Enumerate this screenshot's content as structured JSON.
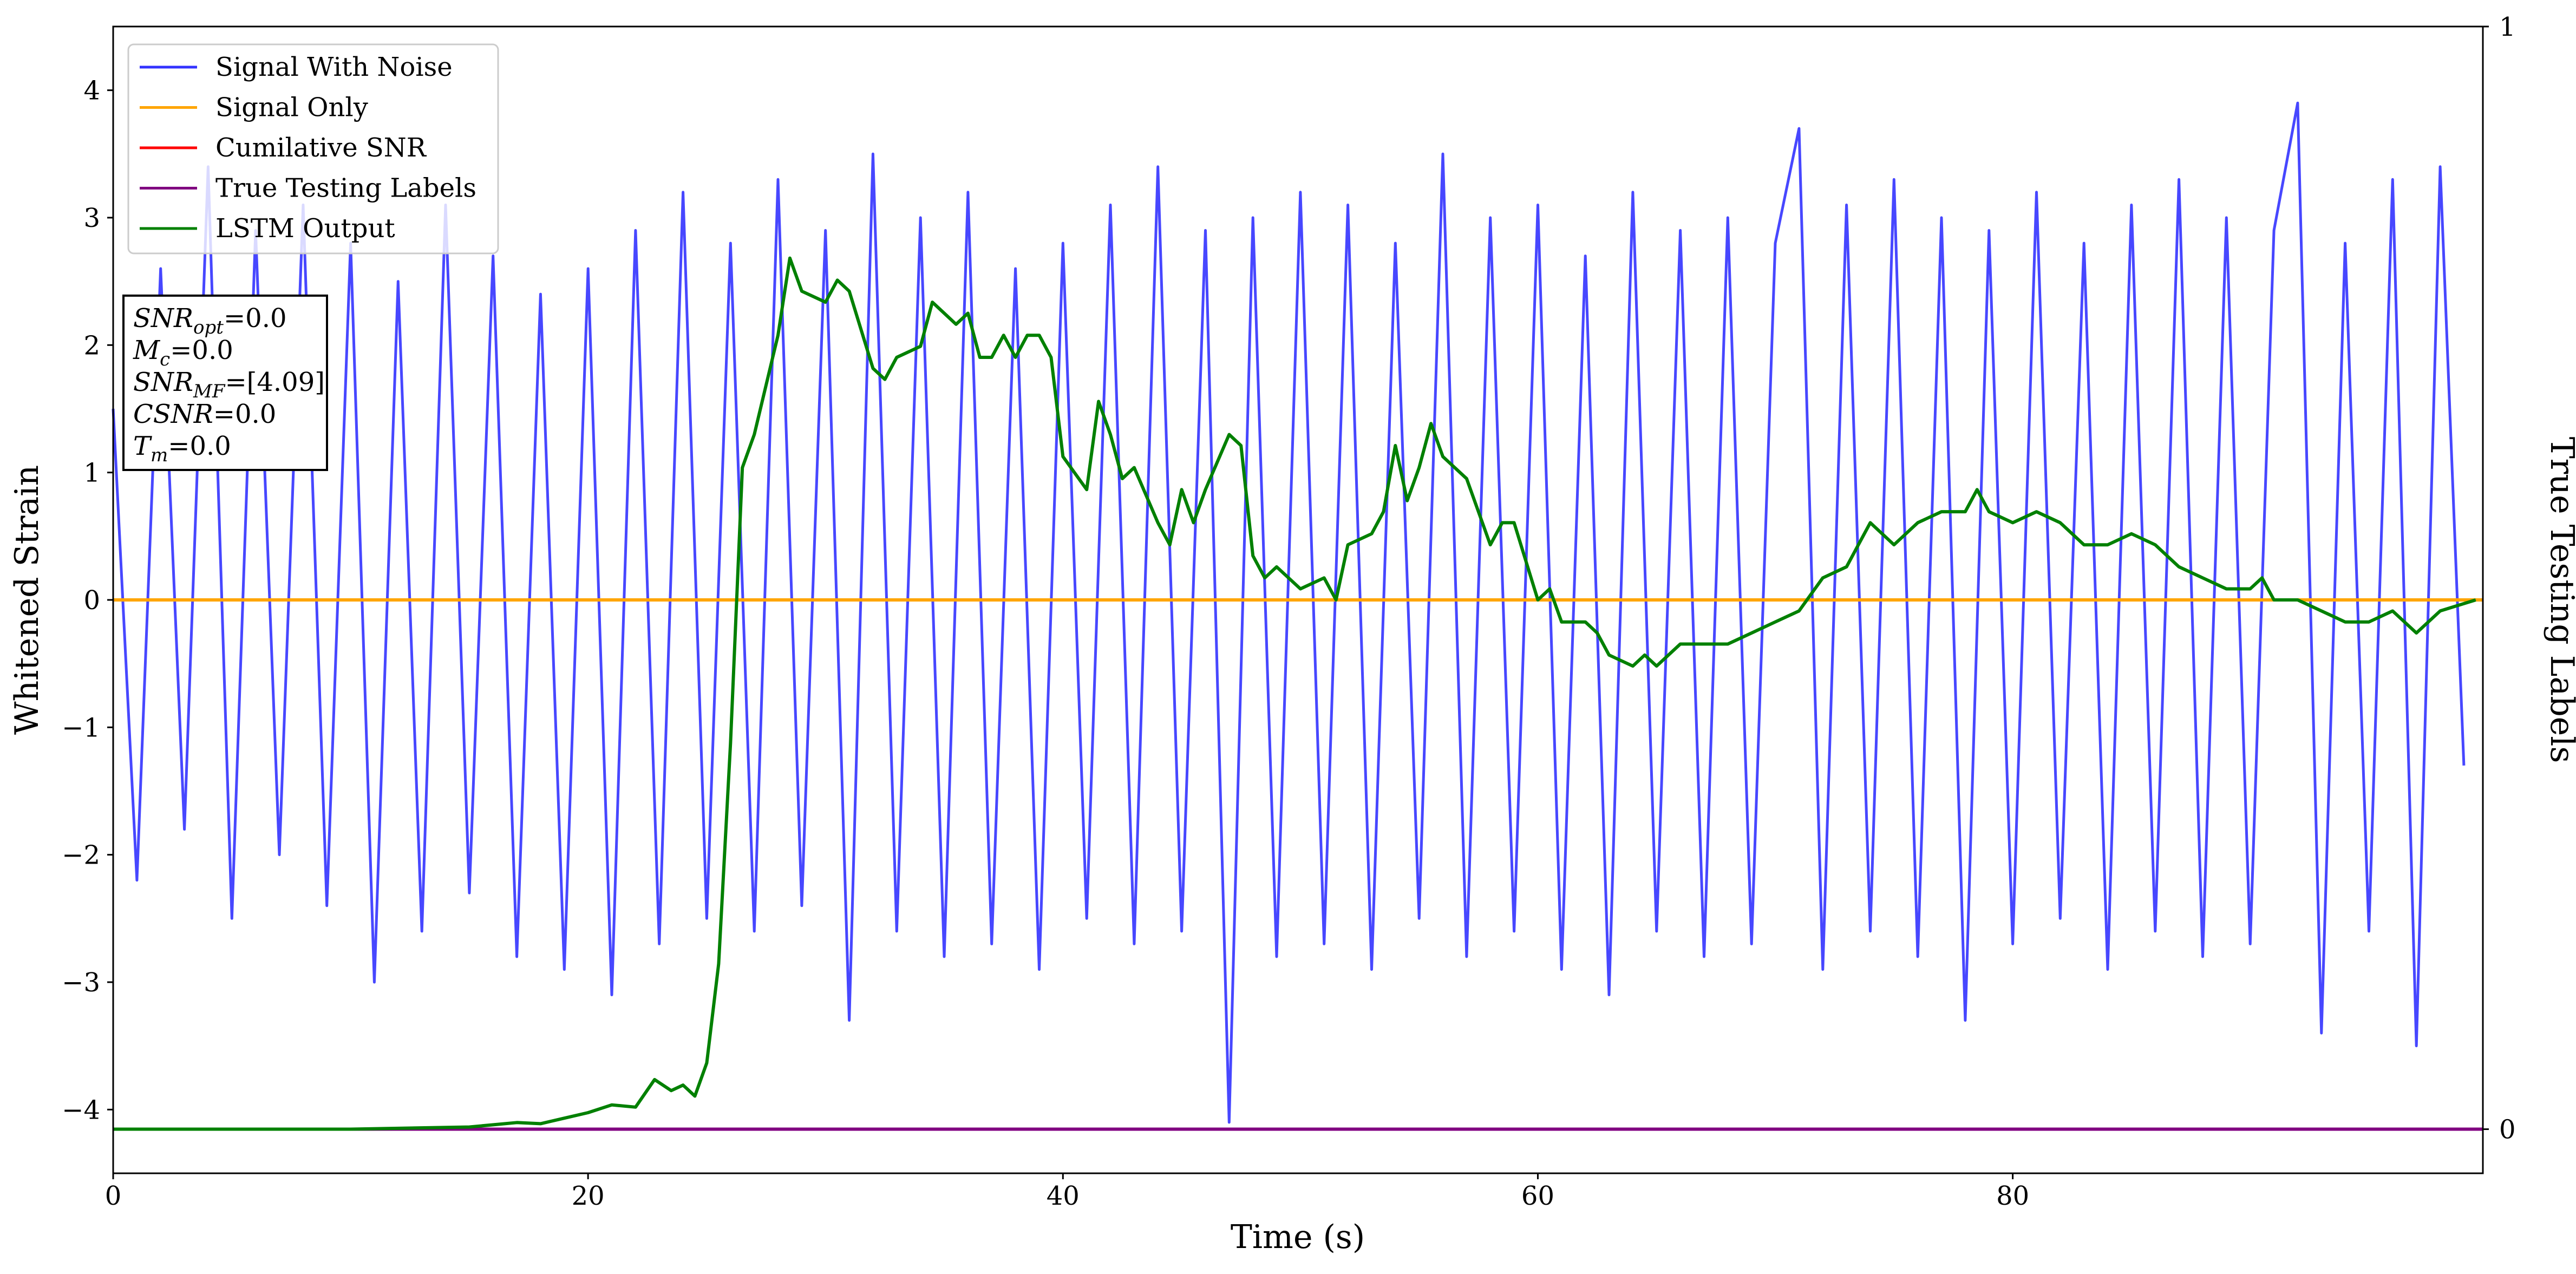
{
  "chart_data": {
    "type": "line",
    "xlabel": "Time (s)",
    "ylabel": "Whitened Strain",
    "y2label": "True Testing Labels",
    "xlim": [
      0,
      99.8
    ],
    "xticks": [
      0,
      20,
      40,
      60,
      80
    ],
    "ylim": [
      -4.5,
      4.5
    ],
    "yticks": [
      -4,
      -3,
      -2,
      -1,
      0,
      1,
      2,
      3,
      4
    ],
    "y2lim": [
      -0.04,
      1
    ],
    "y2ticks": [
      0,
      1
    ],
    "legend": "upper left",
    "series": [
      {
        "name": "Signal With Noise",
        "color": "#3333ff",
        "x": [
          0,
          1,
          2,
          3,
          4,
          5,
          6,
          7,
          8,
          9,
          10,
          11,
          12,
          13,
          14,
          15,
          16,
          17,
          18,
          19,
          20,
          21,
          22,
          23,
          24,
          25,
          26,
          27,
          28,
          29,
          30,
          31,
          32,
          33,
          34,
          35,
          36,
          37,
          38,
          39,
          40,
          41,
          42,
          43,
          44,
          45,
          46,
          47,
          48,
          49,
          50,
          51,
          52,
          53,
          54,
          55,
          56,
          57,
          58,
          59,
          60,
          61,
          62,
          63,
          64,
          65,
          66,
          67,
          68,
          69,
          70,
          71,
          72,
          73,
          74,
          75,
          76,
          77,
          78,
          79,
          80,
          81,
          82,
          83,
          84,
          85,
          86,
          87,
          88,
          89,
          90,
          91,
          92,
          93,
          94,
          95,
          96,
          97,
          98,
          99
        ],
        "values": [
          1.5,
          -2.2,
          2.6,
          -1.8,
          3.4,
          -2.5,
          2.9,
          -2.0,
          3.1,
          -2.4,
          2.8,
          -3.0,
          2.5,
          -2.6,
          3.1,
          -2.3,
          2.7,
          -2.8,
          2.4,
          -2.9,
          2.6,
          -3.1,
          2.9,
          -2.7,
          3.2,
          -2.5,
          2.8,
          -2.6,
          3.3,
          -2.4,
          2.9,
          -3.3,
          3.5,
          -2.6,
          3.0,
          -2.8,
          3.2,
          -2.7,
          2.6,
          -2.9,
          2.8,
          -2.5,
          3.1,
          -2.7,
          3.4,
          -2.6,
          2.9,
          -4.1,
          3.0,
          -2.8,
          3.2,
          -2.7,
          3.1,
          -2.9,
          2.8,
          -2.5,
          3.5,
          -2.8,
          3.0,
          -2.6,
          3.1,
          -2.9,
          2.7,
          -3.1,
          3.2,
          -2.6,
          2.9,
          -2.8,
          3.0,
          -2.7,
          2.8,
          3.7,
          -2.9,
          3.1,
          -2.6,
          3.3,
          -2.8,
          3.0,
          -3.3,
          2.9,
          -2.7,
          3.2,
          -2.5,
          2.8,
          -2.9,
          3.1,
          -2.6,
          3.3,
          -2.8,
          3.0,
          -2.7,
          2.9,
          3.9,
          -3.4,
          2.8,
          -2.6,
          3.3,
          -3.5,
          3.4,
          -1.3
        ]
      },
      {
        "name": "Signal Only",
        "color": "#ffa500",
        "x": [
          0,
          99.8
        ],
        "values": [
          0,
          0
        ]
      },
      {
        "name": "Cumilative SNR",
        "color": "#ff0000",
        "x": [
          0,
          99.8
        ],
        "values": [
          0,
          0
        ]
      },
      {
        "name": "True Testing Labels",
        "color": "#800080",
        "axis": "y2",
        "x": [
          0,
          99.8
        ],
        "values": [
          0,
          0
        ]
      },
      {
        "name": "LSTM Output",
        "color": "#008000",
        "axis": "y2",
        "x": [
          0,
          10,
          15,
          17,
          18,
          19,
          20,
          21,
          22,
          22.8,
          23.5,
          24,
          24.5,
          25,
          25.5,
          26,
          26.5,
          27,
          28,
          28.5,
          29,
          30,
          30.5,
          31,
          32,
          32.5,
          33,
          34,
          34.5,
          35,
          35.5,
          36,
          36.5,
          37,
          37.5,
          38,
          38.5,
          39,
          39.5,
          40,
          41,
          41.5,
          42,
          42.5,
          43,
          44,
          44.5,
          45,
          45.5,
          46,
          47,
          47.5,
          48,
          48.5,
          49,
          50,
          51,
          51.5,
          52,
          53,
          53.5,
          54,
          54.5,
          55,
          55.5,
          56,
          57,
          58,
          58.5,
          59,
          60,
          60.5,
          61,
          62,
          62.5,
          63,
          64,
          64.5,
          65,
          66,
          67,
          68,
          69,
          70,
          71,
          72,
          73,
          74,
          75,
          76,
          77,
          78,
          78.5,
          79,
          80,
          81,
          82,
          83,
          84,
          85,
          86,
          87,
          88,
          89,
          90,
          90.5,
          91,
          92,
          93,
          94,
          95,
          96,
          97,
          98,
          99.5
        ],
        "values": [
          0,
          0,
          0.002,
          0.006,
          0.005,
          0.01,
          0.015,
          0.022,
          0.02,
          0.045,
          0.035,
          0.04,
          0.03,
          0.06,
          0.15,
          0.35,
          0.6,
          0.63,
          0.72,
          0.79,
          0.76,
          0.75,
          0.77,
          0.76,
          0.69,
          0.68,
          0.7,
          0.71,
          0.75,
          0.74,
          0.73,
          0.74,
          0.7,
          0.7,
          0.72,
          0.7,
          0.72,
          0.72,
          0.7,
          0.61,
          0.58,
          0.66,
          0.63,
          0.59,
          0.6,
          0.55,
          0.53,
          0.58,
          0.55,
          0.58,
          0.63,
          0.62,
          0.52,
          0.5,
          0.51,
          0.49,
          0.5,
          0.48,
          0.53,
          0.54,
          0.56,
          0.62,
          0.57,
          0.6,
          0.64,
          0.61,
          0.59,
          0.53,
          0.55,
          0.55,
          0.48,
          0.49,
          0.46,
          0.46,
          0.45,
          0.43,
          0.42,
          0.43,
          0.42,
          0.44,
          0.44,
          0.44,
          0.45,
          0.46,
          0.47,
          0.5,
          0.51,
          0.55,
          0.53,
          0.55,
          0.56,
          0.56,
          0.58,
          0.56,
          0.55,
          0.56,
          0.55,
          0.53,
          0.53,
          0.54,
          0.53,
          0.51,
          0.5,
          0.49,
          0.49,
          0.5,
          0.48,
          0.48,
          0.47,
          0.46,
          0.46,
          0.47,
          0.45,
          0.47,
          0.48
        ]
      }
    ],
    "annotation": [
      {
        "main": "SNR",
        "sub": "opt",
        "rest": "=0.0"
      },
      {
        "main": "M",
        "sub": "c",
        "rest": "=0.0"
      },
      {
        "main": "SNR",
        "sub": "MF",
        "rest": "=[4.09]"
      },
      {
        "main": "CSNR",
        "rest": "=0.0"
      },
      {
        "main": "T",
        "sub": "m",
        "rest": "=0.0"
      }
    ]
  }
}
